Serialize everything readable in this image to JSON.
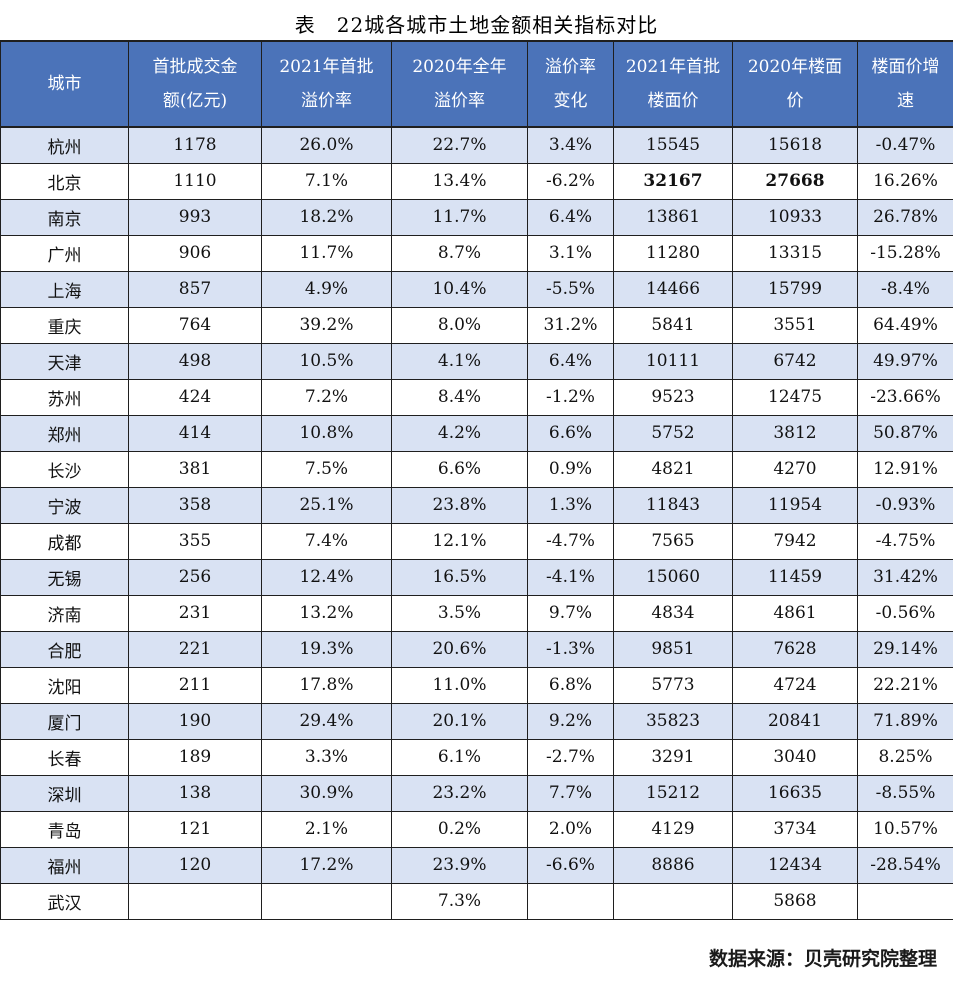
{
  "title": "表　22城各城市土地金额相关指标对比",
  "source_note": "数据来源：贝壳研究院整理",
  "colors": {
    "header_bg": "#4b73b9",
    "header_text": "#ffffff",
    "band_row_bg": "#d9e2f3",
    "white_row_bg": "#ffffff",
    "border": "#1f1f1f",
    "body_text": "#111111"
  },
  "table": {
    "column_headers": [
      [
        "城市"
      ],
      [
        "首批成交金",
        "额(亿元)"
      ],
      [
        "2021年首批",
        "溢价率"
      ],
      [
        "2020年全年",
        "溢价率"
      ],
      [
        "溢价率",
        "变化"
      ],
      [
        "2021年首批",
        "楼面价"
      ],
      [
        "2020年楼面",
        "价"
      ],
      [
        "楼面价增",
        "速"
      ]
    ],
    "rows": [
      {
        "city": "杭州",
        "values": [
          "1178",
          "26.0%",
          "22.7%",
          "3.4%",
          "15545",
          "15618",
          "-0.47%"
        ]
      },
      {
        "city": "北京",
        "values": [
          "1110",
          "7.1%",
          "13.4%",
          "-6.2%",
          "32167",
          "27668",
          "16.26%"
        ],
        "bold": [
          4,
          5
        ]
      },
      {
        "city": "南京",
        "values": [
          "993",
          "18.2%",
          "11.7%",
          "6.4%",
          "13861",
          "10933",
          "26.78%"
        ]
      },
      {
        "city": "广州",
        "values": [
          "906",
          "11.7%",
          "8.7%",
          "3.1%",
          "11280",
          "13315",
          "-15.28%"
        ]
      },
      {
        "city": "上海",
        "values": [
          "857",
          "4.9%",
          "10.4%",
          "-5.5%",
          "14466",
          "15799",
          "-8.4%"
        ]
      },
      {
        "city": "重庆",
        "values": [
          "764",
          "39.2%",
          "8.0%",
          "31.2%",
          "5841",
          "3551",
          "64.49%"
        ]
      },
      {
        "city": "天津",
        "values": [
          "498",
          "10.5%",
          "4.1%",
          "6.4%",
          "10111",
          "6742",
          "49.97%"
        ]
      },
      {
        "city": "苏州",
        "values": [
          "424",
          "7.2%",
          "8.4%",
          "-1.2%",
          "9523",
          "12475",
          "-23.66%"
        ]
      },
      {
        "city": "郑州",
        "values": [
          "414",
          "10.8%",
          "4.2%",
          "6.6%",
          "5752",
          "3812",
          "50.87%"
        ]
      },
      {
        "city": "长沙",
        "values": [
          "381",
          "7.5%",
          "6.6%",
          "0.9%",
          "4821",
          "4270",
          "12.91%"
        ]
      },
      {
        "city": "宁波",
        "values": [
          "358",
          "25.1%",
          "23.8%",
          "1.3%",
          "11843",
          "11954",
          "-0.93%"
        ]
      },
      {
        "city": "成都",
        "values": [
          "355",
          "7.4%",
          "12.1%",
          "-4.7%",
          "7565",
          "7942",
          "-4.75%"
        ]
      },
      {
        "city": "无锡",
        "values": [
          "256",
          "12.4%",
          "16.5%",
          "-4.1%",
          "15060",
          "11459",
          "31.42%"
        ]
      },
      {
        "city": "济南",
        "values": [
          "231",
          "13.2%",
          "3.5%",
          "9.7%",
          "4834",
          "4861",
          "-0.56%"
        ]
      },
      {
        "city": "合肥",
        "values": [
          "221",
          "19.3%",
          "20.6%",
          "-1.3%",
          "9851",
          "7628",
          "29.14%"
        ]
      },
      {
        "city": "沈阳",
        "values": [
          "211",
          "17.8%",
          "11.0%",
          "6.8%",
          "5773",
          "4724",
          "22.21%"
        ]
      },
      {
        "city": "厦门",
        "values": [
          "190",
          "29.4%",
          "20.1%",
          "9.2%",
          "35823",
          "20841",
          "71.89%"
        ]
      },
      {
        "city": "长春",
        "values": [
          "189",
          "3.3%",
          "6.1%",
          "-2.7%",
          "3291",
          "3040",
          "8.25%"
        ]
      },
      {
        "city": "深圳",
        "values": [
          "138",
          "30.9%",
          "23.2%",
          "7.7%",
          "15212",
          "16635",
          "-8.55%"
        ]
      },
      {
        "city": "青岛",
        "values": [
          "121",
          "2.1%",
          "0.2%",
          "2.0%",
          "4129",
          "3734",
          "10.57%"
        ]
      },
      {
        "city": "福州",
        "values": [
          "120",
          "17.2%",
          "23.9%",
          "-6.6%",
          "8886",
          "12434",
          "-28.54%"
        ]
      },
      {
        "city": "武汉",
        "values": [
          "",
          "",
          "7.3%",
          "",
          "",
          "5868",
          ""
        ]
      }
    ]
  }
}
